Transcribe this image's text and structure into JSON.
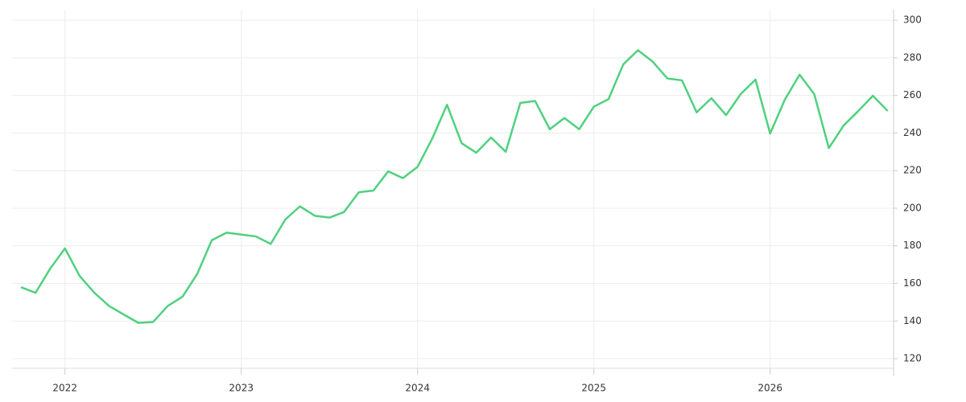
{
  "chart_data": {
    "type": "line",
    "x": [
      2021.75,
      2021.833,
      2021.917,
      2022.0,
      2022.083,
      2022.167,
      2022.25,
      2022.333,
      2022.417,
      2022.5,
      2022.583,
      2022.667,
      2022.75,
      2022.833,
      2022.917,
      2023.0,
      2023.083,
      2023.167,
      2023.25,
      2023.333,
      2023.417,
      2023.5,
      2023.583,
      2023.667,
      2023.75,
      2023.833,
      2023.917,
      2024.0,
      2024.083,
      2024.167,
      2024.25,
      2024.333,
      2024.417,
      2024.5,
      2024.583,
      2024.667,
      2024.75,
      2024.833,
      2024.917,
      2025.0,
      2025.083,
      2025.167,
      2025.25,
      2025.333,
      2025.417,
      2025.5,
      2025.583,
      2025.667,
      2025.75,
      2025.833,
      2025.917,
      2026.0,
      2026.083,
      2026.167,
      2026.25,
      2026.333,
      2026.417,
      2026.5,
      2026.583,
      2026.667
    ],
    "series": [
      {
        "color": "#4fd17f",
        "values": [
          158,
          155,
          168,
          178.6,
          164,
          155,
          148,
          143.5,
          139,
          139.5,
          148,
          153,
          165,
          183,
          187,
          186,
          185,
          181,
          194,
          201,
          196,
          195,
          198,
          208.5,
          209.4,
          219.6,
          216,
          222,
          237,
          255,
          234.6,
          229.5,
          237.6,
          230,
          256,
          257,
          242,
          248,
          242,
          254,
          258,
          276.5,
          284,
          278,
          269,
          268,
          251,
          258.5,
          249.5,
          260.7,
          268.4,
          239.7,
          257.7,
          271,
          260.7,
          232,
          244,
          251.7,
          259.8,
          251.7
        ]
      }
    ],
    "xlim": [
      2021.7,
      2026.7
    ],
    "xticks": [
      2022,
      2023,
      2024,
      2025,
      2026
    ],
    "ylim": [
      114.9,
      305.6
    ],
    "yticks": [
      120,
      140,
      160,
      180,
      200,
      220,
      240,
      260,
      280,
      300
    ],
    "grid": true
  }
}
